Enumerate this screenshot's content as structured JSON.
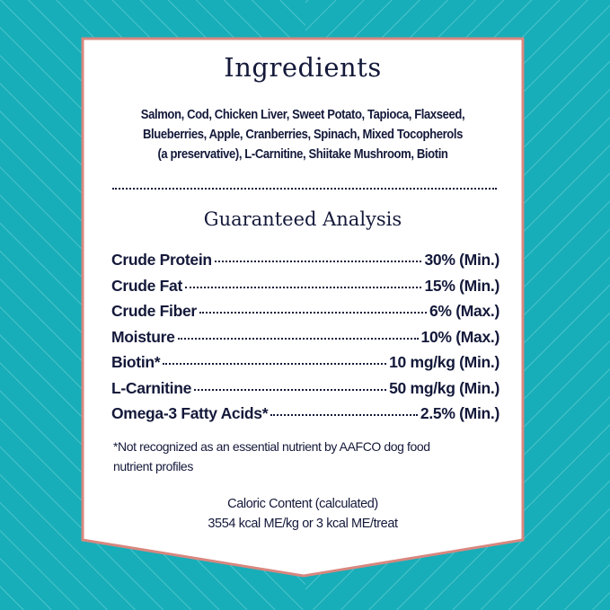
{
  "colors": {
    "background": "#17aeb9",
    "pattern": "#5fcbd2",
    "panel": "#ffffff",
    "border": "#d8877f",
    "text": "#14193a"
  },
  "ingredients": {
    "title": "Ingredients",
    "lines": [
      "Salmon, Cod, Chicken Liver, Sweet Potato, Tapioca, Flaxseed,",
      "Blueberries, Apple, Cranberries, Spinach, Mixed Tocopherols",
      "(a preservative), L-Carnitine, Shiitake Mushroom, Biotin"
    ]
  },
  "analysis": {
    "title": "Guaranteed Analysis",
    "rows": [
      {
        "label": "Crude Protein",
        "value": "30% (Min.)"
      },
      {
        "label": "Crude Fat",
        "value": "15% (Min.)"
      },
      {
        "label": "Crude Fiber",
        "value": "6% (Max.)"
      },
      {
        "label": "Moisture",
        "value": "10% (Max.)"
      },
      {
        "label": "Biotin*",
        "value": "10 mg/kg (Min.)"
      },
      {
        "label": "L-Carnitine",
        "value": "50 mg/kg (Min.)"
      },
      {
        "label": "Omega-3 Fatty Acids*",
        "value": "2.5% (Min.)"
      }
    ],
    "footnote_lines": [
      "*Not recognized as an essential nutrient by AAFCO dog food",
      "nutrient profiles"
    ]
  },
  "caloric": {
    "title": "Caloric Content (calculated)",
    "value": "3554 kcal ME/kg or 3 kcal ME/treat"
  }
}
